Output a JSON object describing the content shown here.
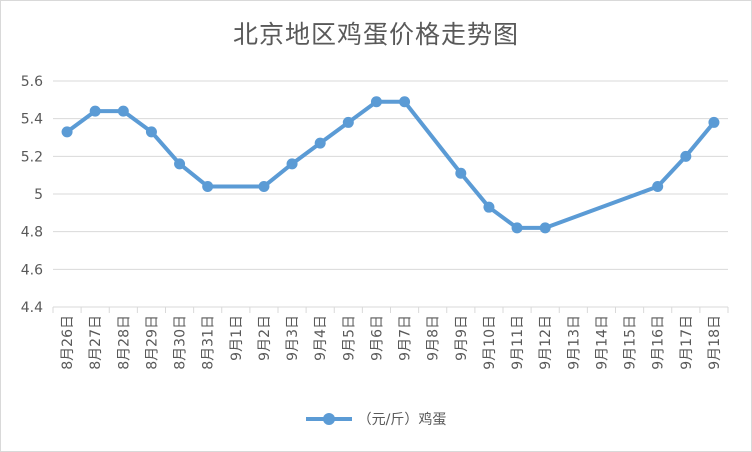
{
  "chart_data": {
    "type": "line",
    "title": "北京地区鸡蛋价格走势图",
    "xlabel": "",
    "ylabel": "",
    "categories": [
      "8月26日",
      "8月27日",
      "8月28日",
      "8月29日",
      "8月30日",
      "8月31日",
      "9月1日",
      "9月2日",
      "9月3日",
      "9月4日",
      "9月5日",
      "9月6日",
      "9月7日",
      "9月8日",
      "9月9日",
      "9月10日",
      "9月11日",
      "9月12日",
      "9月13日",
      "9月14日",
      "9月15日",
      "9月16日",
      "9月17日",
      "9月18日"
    ],
    "series": [
      {
        "name": "（元/斤）鸡蛋",
        "color": "#5b9bd5",
        "values": [
          5.33,
          5.44,
          5.44,
          5.33,
          5.16,
          5.04,
          null,
          5.04,
          5.16,
          5.27,
          5.38,
          5.49,
          5.49,
          null,
          5.11,
          4.93,
          4.82,
          4.82,
          null,
          null,
          null,
          5.04,
          5.2,
          5.38
        ]
      }
    ],
    "ylim": [
      4.4,
      5.6
    ],
    "yticks": [
      "4.4",
      "4.6",
      "4.8",
      "5",
      "5.2",
      "5.4",
      "5.6"
    ],
    "grid": true,
    "legend_position": "bottom"
  }
}
